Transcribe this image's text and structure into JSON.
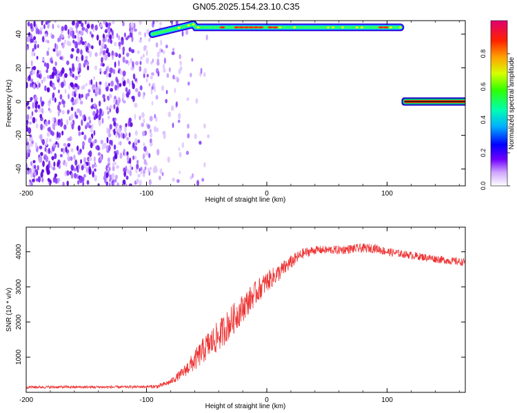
{
  "title": "GN05.2025.154.23.10.C35",
  "chart_data": [
    {
      "type": "heatmap",
      "xlabel": "Height of straight line (km)",
      "ylabel": "Frequency (Hz)",
      "xlim": [
        -200,
        165
      ],
      "ylim": [
        -50,
        48
      ],
      "x_ticks": [
        -200,
        -100,
        0,
        100
      ],
      "y_ticks": [
        -40,
        -20,
        0,
        20,
        40
      ],
      "colorbar": {
        "label": "Normalized spectral amplitude",
        "range": [
          0,
          1
        ],
        "ticks": [
          "0.0",
          "0.2",
          "0.4",
          "0.6",
          "0.8"
        ],
        "colors": [
          "#ffffff",
          "#b070ff",
          "#5000e0",
          "#0000ff",
          "#00c8ff",
          "#00ff90",
          "#40ff00",
          "#e0ff00",
          "#ffa000",
          "#ff2000",
          "#e00070"
        ]
      },
      "features": [
        {
          "name": "noise",
          "x_range": [
            -200,
            -85
          ],
          "freq_range": [
            -50,
            48
          ]
        },
        {
          "name": "upper band",
          "x_range": [
            -95,
            112
          ],
          "freq_start": 38,
          "freq": 44
        },
        {
          "name": "zero band",
          "x_range": [
            112,
            165
          ],
          "freq": 0
        }
      ]
    },
    {
      "type": "line",
      "xlabel": "Height of straight line (km)",
      "ylabel": "SNR (10 * v/v)",
      "xlim": [
        -200,
        165
      ],
      "ylim": [
        0,
        4700
      ],
      "x_ticks": [
        -200,
        -100,
        0,
        100
      ],
      "y_ticks": [
        1000,
        2000,
        3000,
        4000
      ],
      "color": "#ee3333",
      "series": [
        {
          "x": [
            -200,
            -180,
            -160,
            -140,
            -120,
            -100,
            -90,
            -80,
            -70,
            -60,
            -50,
            -40,
            -30,
            -20,
            -10,
            0,
            10,
            20,
            30,
            40,
            50,
            60,
            70,
            80,
            90,
            100,
            110,
            120,
            130,
            140,
            150,
            165
          ],
          "values": [
            150,
            150,
            150,
            150,
            150,
            160,
            170,
            300,
            550,
            900,
            1300,
            1600,
            2000,
            2400,
            2800,
            3150,
            3400,
            3700,
            3950,
            4050,
            4050,
            4050,
            4080,
            4100,
            4100,
            4000,
            3950,
            3900,
            3850,
            3800,
            3750,
            3700
          ],
          "noise": [
            40,
            40,
            40,
            40,
            40,
            40,
            60,
            80,
            150,
            300,
            400,
            450,
            450,
            400,
            350,
            300,
            250,
            200,
            150,
            120,
            120,
            130,
            130,
            130,
            130,
            120,
            110,
            110,
            110,
            110,
            110,
            110
          ]
        }
      ]
    }
  ]
}
